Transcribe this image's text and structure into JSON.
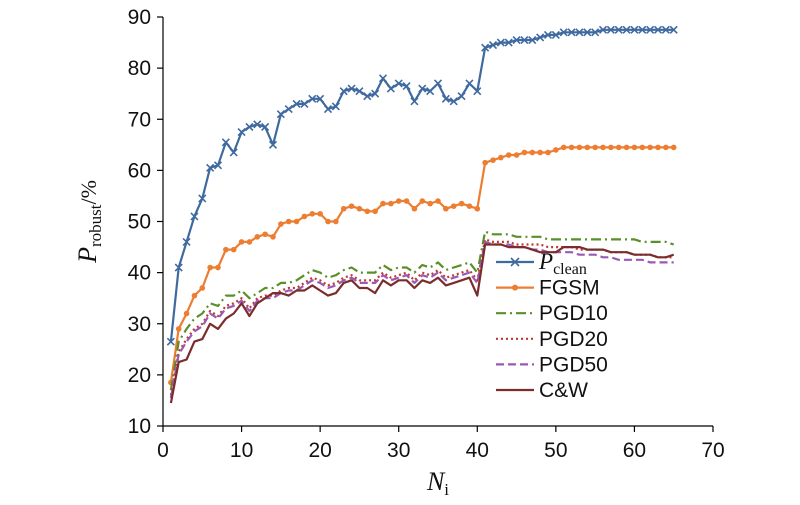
{
  "chart_data": {
    "type": "line",
    "title": "",
    "xlabel": {
      "main": "N",
      "sub": "i"
    },
    "ylabel": {
      "main": "P",
      "sub": "robust",
      "suffix": "/%"
    },
    "xlim": [
      0,
      70
    ],
    "ylim": [
      10,
      90
    ],
    "xticks": [
      "0",
      "10",
      "20",
      "30",
      "40",
      "50",
      "60",
      "70"
    ],
    "yticks": [
      "10",
      "20",
      "30",
      "40",
      "50",
      "60",
      "70",
      "80",
      "90"
    ],
    "grid": false,
    "legend_position": "center-right",
    "x": [
      1,
      2,
      3,
      4,
      5,
      6,
      7,
      8,
      9,
      10,
      11,
      12,
      13,
      14,
      15,
      16,
      17,
      18,
      19,
      20,
      21,
      22,
      23,
      24,
      25,
      26,
      27,
      28,
      29,
      30,
      31,
      32,
      33,
      34,
      35,
      36,
      37,
      38,
      39,
      40,
      41,
      42,
      43,
      44,
      45,
      46,
      47,
      48,
      49,
      50,
      51,
      52,
      53,
      54,
      55,
      56,
      57,
      58,
      59,
      60,
      61,
      62,
      63,
      64,
      65
    ],
    "series": [
      {
        "name": "P",
        "name_sub": "clean",
        "color": "#3f6aa0",
        "marker": "x",
        "dash": "solid",
        "values": [
          26.5,
          41,
          46,
          51,
          54.5,
          60.5,
          61,
          65.5,
          63.5,
          67.5,
          68.5,
          69,
          68.5,
          65,
          71,
          72,
          73,
          73,
          74,
          74,
          72,
          72.5,
          75.5,
          76,
          75.5,
          74.5,
          75,
          78,
          76,
          77,
          76.5,
          73.5,
          76,
          75.5,
          77,
          74,
          73.5,
          74.5,
          77,
          75.5,
          84,
          84.5,
          85,
          85,
          85.5,
          85.5,
          85.5,
          86,
          86.5,
          86.5,
          87,
          87,
          87,
          87,
          87,
          87.5,
          87.5,
          87.5,
          87.5,
          87.5,
          87.5,
          87.5,
          87.5,
          87.5,
          87.5
        ]
      },
      {
        "name": "FGSM",
        "color": "#ed7d31",
        "marker": "dot",
        "dash": "solid",
        "values": [
          18.5,
          29,
          32,
          35.5,
          37,
          41,
          41,
          44.5,
          44.5,
          46,
          46,
          47,
          47.5,
          47,
          49.5,
          50,
          50,
          51,
          51.5,
          51.5,
          50,
          50,
          52.5,
          53,
          52.5,
          52,
          52,
          53.5,
          53.5,
          54,
          54,
          52.5,
          54,
          53.5,
          54,
          52.5,
          53,
          53.5,
          53,
          52.5,
          61.5,
          62,
          62.5,
          63,
          63,
          63.5,
          63.5,
          63.5,
          63.5,
          64,
          64.5,
          64.5,
          64.5,
          64.5,
          64.5,
          64.5,
          64.5,
          64.5,
          64.5,
          64.5,
          64.5,
          64.5,
          64.5,
          64.5,
          64.5
        ]
      },
      {
        "name": "PGD10",
        "color": "#5a8f2a",
        "marker": "none",
        "dash": "dashdot",
        "values": [
          17,
          26.5,
          29,
          31,
          32,
          34,
          33.5,
          35.5,
          35.5,
          36.5,
          35,
          36,
          37,
          37,
          38,
          38,
          38.5,
          39.5,
          40.5,
          40,
          39,
          39.5,
          40.5,
          41,
          40,
          40,
          40,
          41.5,
          40.5,
          41,
          41,
          40,
          41.5,
          41,
          42,
          40.5,
          41,
          41.5,
          42,
          40,
          48,
          47.5,
          47.5,
          47.5,
          47,
          47,
          47,
          47,
          46.5,
          46.5,
          46.5,
          46.5,
          46.5,
          46.5,
          46.5,
          46.5,
          46.5,
          46.5,
          46.5,
          46.5,
          46,
          46,
          46,
          46,
          45.5
        ]
      },
      {
        "name": "PGD20",
        "color": "#c0392b",
        "marker": "none",
        "dash": "dot",
        "values": [
          16,
          24.5,
          27,
          29,
          30,
          32.5,
          31.5,
          33.5,
          34,
          35,
          33,
          35,
          35.5,
          35.5,
          36.5,
          37,
          37,
          38,
          39,
          38.5,
          37.5,
          38,
          39,
          39.5,
          38.5,
          38.5,
          38.5,
          40,
          39,
          39.5,
          40,
          38.5,
          40,
          39.5,
          40.5,
          39,
          39.5,
          40,
          40.5,
          38.5,
          46.5,
          46,
          46,
          46,
          45.5,
          45.5,
          45.5,
          45.5,
          45,
          45,
          45,
          45,
          44.5,
          44.5,
          44.5,
          44.5,
          44,
          44,
          44,
          43.5,
          43.5,
          43.5,
          43,
          43,
          43
        ]
      },
      {
        "name": "PGD50",
        "color": "#9b59b6",
        "marker": "none",
        "dash": "dash",
        "values": [
          15.5,
          24,
          26.5,
          28.5,
          29.5,
          32,
          31,
          33,
          33.5,
          34.5,
          32.5,
          34.5,
          35,
          35,
          36,
          36.5,
          36.5,
          37.5,
          38.5,
          38,
          37,
          37.5,
          38.5,
          39,
          38,
          38,
          38,
          39.5,
          38.5,
          39,
          39.5,
          38,
          39.5,
          39,
          40,
          38.5,
          39,
          39.5,
          40,
          38,
          46,
          45.5,
          45.5,
          45.5,
          45,
          45,
          44.5,
          44.5,
          44,
          44,
          44,
          44,
          43.5,
          43.5,
          43.5,
          43,
          43,
          42.5,
          42.5,
          42.5,
          42.5,
          42,
          42,
          42,
          42
        ]
      },
      {
        "name": "C&W",
        "color": "#7b2c2c",
        "marker": "none",
        "dash": "solid",
        "values": [
          14.5,
          22.5,
          23,
          26.5,
          27,
          30,
          29,
          31,
          32,
          34,
          31.5,
          34,
          35,
          36,
          36,
          35.5,
          36.5,
          36.5,
          37.5,
          36.5,
          35.5,
          36,
          38,
          38.5,
          37,
          37,
          36,
          38.5,
          37.5,
          38.5,
          38.5,
          37,
          38.5,
          38,
          39,
          37.5,
          38,
          38.5,
          39,
          35.5,
          45.5,
          45.5,
          45.5,
          45,
          45,
          45,
          44.5,
          44,
          44,
          44,
          45,
          45,
          45,
          44.5,
          44.5,
          44.5,
          44,
          44,
          44,
          43.5,
          43.5,
          43.5,
          43,
          43,
          43.5
        ]
      }
    ]
  }
}
